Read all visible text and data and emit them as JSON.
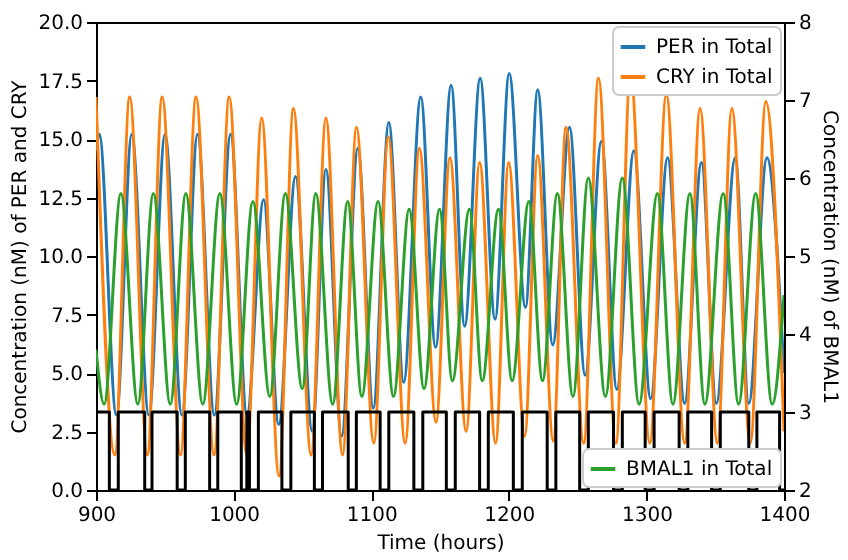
{
  "chart_data": {
    "type": "line",
    "xlabel": "Time (hours)",
    "ylabel": "Concentration (nM) of PER and CRY",
    "y2label": "Concentration (nM) of BMAL1",
    "xlim": [
      900,
      1400
    ],
    "xticks": [
      900,
      1000,
      1100,
      1200,
      1300,
      1400
    ],
    "ylim": [
      0,
      20
    ],
    "yticks": [
      {
        "value": 0,
        "label": "0.0"
      },
      {
        "value": 2.5,
        "label": "2.5"
      },
      {
        "value": 5,
        "label": "5.0"
      },
      {
        "value": 7.5,
        "label": "7.5"
      },
      {
        "value": 10,
        "label": "10.0"
      },
      {
        "value": 12.5,
        "label": "12.5"
      },
      {
        "value": 15,
        "label": "15.0"
      },
      {
        "value": 17.5,
        "label": "17.5"
      },
      {
        "value": 20,
        "label": "20.0"
      }
    ],
    "y2lim": [
      2,
      8
    ],
    "y2ticks": [
      2,
      3,
      4,
      5,
      6,
      7,
      8
    ],
    "grid": false,
    "legend": "top right",
    "series": [
      {
        "name": "PER in Total",
        "color": "#1f77b4",
        "x": [
          900,
          902.4,
          914.8,
          926.0,
          938.4,
          950.2,
          962.4,
          973.8,
          986.0,
          997.8,
          1009.7,
          1021.8,
          1032.8,
          1045.0,
          1057.2,
          1067.1,
          1078.5,
          1090.3,
          1101.5,
          1112.8,
          1123.6,
          1136.0,
          1146.8,
          1158.1,
          1167.9,
          1179.2,
          1190.0,
          1200.3,
          1212.1,
          1221.0,
          1231.9,
          1244.1,
          1255.5,
          1267.3,
          1278.5,
          1290.9,
          1303.1,
          1315.4,
          1327.8,
          1340.0,
          1350.8,
          1364.6,
          1374.4,
          1387.6,
          1400
        ],
        "values": [
          14.5,
          15.2,
          3.2,
          15.2,
          3.2,
          15.2,
          3.2,
          15.2,
          3.2,
          15.2,
          3.2,
          12.4,
          2.8,
          13.4,
          2.5,
          13.7,
          2.3,
          14.6,
          3.5,
          15.7,
          4.6,
          16.8,
          6.1,
          17.3,
          7.0,
          17.6,
          7.3,
          17.8,
          7.8,
          17.1,
          6.2,
          15.5,
          4.9,
          14.9,
          4.3,
          14.5,
          3.9,
          14.2,
          3.7,
          14.0,
          3.7,
          14.2,
          3.7,
          14.2,
          5.0
        ]
      },
      {
        "name": "CRY in Total",
        "color": "#ff7f0e",
        "x": [
          900,
          913.7,
          924.5,
          937.3,
          948.1,
          961.4,
          972.7,
          985.8,
          996.8,
          1009.6,
          1020.4,
          1033.0,
          1043.5,
          1056.3,
          1067.1,
          1079.2,
          1089.3,
          1101.9,
          1112.4,
          1124.7,
          1135.0,
          1147.1,
          1157.2,
          1169.0,
          1178.8,
          1190.4,
          1199.9,
          1211.5,
          1221.0,
          1232.3,
          1241.6,
          1254.4,
          1265.2,
          1277.8,
          1288.4,
          1302.5,
          1314.5,
          1327.8,
          1339.0,
          1351.6,
          1362.1,
          1375.5,
          1386.8,
          1400
        ],
        "values": [
          16.8,
          1.5,
          16.8,
          1.5,
          16.8,
          1.5,
          16.8,
          1.5,
          16.8,
          1.5,
          15.9,
          0.6,
          16.3,
          1.5,
          15.9,
          1.5,
          15.5,
          2.0,
          15.1,
          2.0,
          14.6,
          2.9,
          14.2,
          2.5,
          14.0,
          2.0,
          14.0,
          2.3,
          14.3,
          2.1,
          15.5,
          2.0,
          17.6,
          2.0,
          17.8,
          2.0,
          16.9,
          2.0,
          16.3,
          2.0,
          16.3,
          2.0,
          16.6,
          2.5
        ]
      },
      {
        "name": "BMAL1 in Total",
        "color": "#2ca02c",
        "axis": "y2",
        "x": [
          900,
          905.9,
          918.1,
          930.4,
          941.7,
          954.0,
          965.3,
          977.6,
          990.0,
          1002.2,
          1014.0,
          1026.3,
          1037.6,
          1049.9,
          1059.7,
          1072.0,
          1082.9,
          1093.2,
          1105.0,
          1116.2,
          1127.6,
          1138.4,
          1149.7,
          1159.0,
          1171.4,
          1180.7,
          1192.5,
          1202.4,
          1214.6,
          1224.5,
          1235.3,
          1246.6,
          1257.8,
          1270.2,
          1282.5,
          1294.7,
          1308.0,
          1319.3,
          1331.6,
          1342.5,
          1355.8,
          1367.0,
          1379.4,
          1391.4,
          1400
        ],
        "values": [
          3.8,
          3.1,
          5.8,
          3.1,
          5.8,
          3.1,
          5.8,
          3.1,
          5.8,
          3.1,
          5.7,
          3.2,
          5.8,
          3.3,
          5.8,
          3.1,
          5.7,
          3.2,
          5.7,
          3.2,
          5.6,
          3.3,
          5.6,
          3.4,
          5.6,
          3.4,
          5.6,
          3.4,
          5.7,
          3.4,
          5.8,
          3.2,
          6.0,
          3.2,
          6.0,
          3.1,
          5.8,
          3.1,
          5.8,
          3.1,
          5.8,
          3.1,
          5.8,
          3.1,
          4.5
        ]
      },
      {
        "color": "#000000",
        "axis": "y2",
        "x": [
          900,
          909.7,
          909.7,
          916.2,
          916.2,
          935.4,
          935.4,
          940.7,
          940.7,
          959.0,
          959.0,
          964.9,
          964.9,
          982.6,
          982.6,
          988.5,
          988.5,
          1005.6,
          1005.6,
          1009.6,
          1009.6,
          1011.5,
          1011.5,
          1018.0,
          1018.0,
          1035.1,
          1035.1,
          1041.6,
          1041.6,
          1058.7,
          1058.7,
          1064.6,
          1064.6,
          1083.3,
          1083.3,
          1089.2,
          1089.2,
          1106.5,
          1106.5,
          1112.8,
          1112.8,
          1131.0,
          1131.0,
          1137.5,
          1137.5,
          1154.6,
          1154.6,
          1161.1,
          1161.1,
          1178.8,
          1178.8,
          1185.1,
          1185.1,
          1203.3,
          1203.3,
          1209.8,
          1209.8,
          1227.9,
          1227.9,
          1234.2,
          1234.2,
          1251.5,
          1251.5,
          1257.8,
          1257.8,
          1276.1,
          1276.1,
          1282.5,
          1282.5,
          1299.1,
          1299.1,
          1305.6,
          1305.6,
          1323.8,
          1323.8,
          1330.1,
          1330.1,
          1347.4,
          1347.4,
          1353.7,
          1353.7,
          1374.4,
          1374.4,
          1380.3,
          1380.3,
          1396.8,
          1396.8,
          1400
        ],
        "values": [
          3,
          3,
          2,
          2,
          3,
          3,
          2,
          2,
          3,
          3,
          2,
          2,
          3,
          3,
          2,
          2,
          3,
          3,
          2,
          2,
          3,
          3,
          2,
          2,
          3,
          3,
          2,
          2,
          3,
          3,
          2,
          2,
          3,
          3,
          2,
          2,
          3,
          3,
          2,
          2,
          3,
          3,
          2,
          2,
          3,
          3,
          2,
          2,
          3,
          3,
          2,
          2,
          3,
          3,
          2,
          2,
          3,
          3,
          2,
          2,
          3,
          3,
          2,
          2,
          3,
          3,
          2,
          2,
          3,
          3,
          2,
          2,
          3,
          3,
          2,
          2,
          3,
          3,
          2,
          2,
          3,
          3,
          2,
          2,
          3,
          3,
          2,
          2
        ]
      }
    ]
  }
}
